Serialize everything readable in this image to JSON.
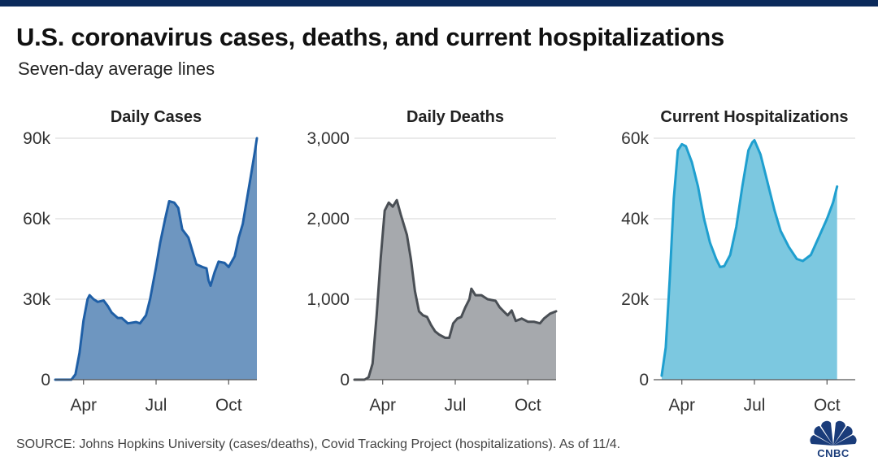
{
  "title": "U.S. coronavirus cases, deaths, and current hospitalizations",
  "subtitle": "Seven-day average lines",
  "source": "SOURCE: Johns Hopkins University (cases/deaths), Covid Tracking Project (hospitalizations). As of 11/4.",
  "logo_text": "CNBC",
  "colors": {
    "cases_line": "#1f5fa6",
    "cases_fill": "#6e96c0",
    "deaths_line": "#4a4f55",
    "deaths_fill": "#a6a9ad",
    "hosp_line": "#1f9fcf",
    "hosp_fill": "#7cc8e0",
    "top_bar": "#0b2a5b"
  },
  "chart_data": [
    {
      "type": "area",
      "title": "Daily Cases",
      "ylim": [
        0,
        90000
      ],
      "yticks": [
        0,
        30000,
        60000,
        90000
      ],
      "ytick_labels": [
        "0",
        "30k",
        "60k",
        "90k"
      ],
      "xlim": [
        0,
        1
      ],
      "xticks": [
        0.14,
        0.5,
        0.86
      ],
      "xtick_labels": [
        "Apr",
        "Jul",
        "Oct"
      ],
      "points": [
        [
          0,
          0
        ],
        [
          0.08,
          0
        ],
        [
          0.1,
          2000
        ],
        [
          0.12,
          10000
        ],
        [
          0.14,
          22000
        ],
        [
          0.16,
          30000
        ],
        [
          0.17,
          31500
        ],
        [
          0.19,
          30000
        ],
        [
          0.21,
          29000
        ],
        [
          0.24,
          29500
        ],
        [
          0.26,
          27500
        ],
        [
          0.28,
          25000
        ],
        [
          0.31,
          23000
        ],
        [
          0.33,
          23000
        ],
        [
          0.36,
          21000
        ],
        [
          0.4,
          21500
        ],
        [
          0.42,
          21000
        ],
        [
          0.45,
          24000
        ],
        [
          0.47,
          30000
        ],
        [
          0.5,
          42000
        ],
        [
          0.52,
          51000
        ],
        [
          0.545,
          60000
        ],
        [
          0.565,
          66500
        ],
        [
          0.59,
          66000
        ],
        [
          0.61,
          64000
        ],
        [
          0.63,
          56000
        ],
        [
          0.66,
          53000
        ],
        [
          0.68,
          48000
        ],
        [
          0.7,
          43000
        ],
        [
          0.73,
          42000
        ],
        [
          0.75,
          41500
        ],
        [
          0.76,
          37000
        ],
        [
          0.77,
          35000
        ],
        [
          0.79,
          40000
        ],
        [
          0.81,
          44000
        ],
        [
          0.84,
          43500
        ],
        [
          0.86,
          42000
        ],
        [
          0.89,
          46000
        ],
        [
          0.91,
          53000
        ],
        [
          0.93,
          58000
        ],
        [
          0.95,
          67000
        ],
        [
          0.97,
          76000
        ],
        [
          0.99,
          85000
        ],
        [
          1,
          90000
        ]
      ]
    },
    {
      "type": "area",
      "title": "Daily Deaths",
      "ylim": [
        0,
        3000
      ],
      "yticks": [
        0,
        1000,
        2000,
        3000
      ],
      "ytick_labels": [
        "0",
        "1,000",
        "2,000",
        "3,000"
      ],
      "xlim": [
        0,
        1
      ],
      "xticks": [
        0.14,
        0.5,
        0.86
      ],
      "xtick_labels": [
        "Apr",
        "Jul",
        "Oct"
      ],
      "points": [
        [
          0,
          0
        ],
        [
          0.05,
          0
        ],
        [
          0.07,
          30
        ],
        [
          0.09,
          200
        ],
        [
          0.11,
          800
        ],
        [
          0.13,
          1500
        ],
        [
          0.15,
          2100
        ],
        [
          0.17,
          2200
        ],
        [
          0.19,
          2150
        ],
        [
          0.21,
          2230
        ],
        [
          0.23,
          2050
        ],
        [
          0.26,
          1800
        ],
        [
          0.28,
          1500
        ],
        [
          0.3,
          1100
        ],
        [
          0.32,
          850
        ],
        [
          0.34,
          800
        ],
        [
          0.36,
          780
        ],
        [
          0.38,
          680
        ],
        [
          0.4,
          600
        ],
        [
          0.42,
          560
        ],
        [
          0.45,
          520
        ],
        [
          0.47,
          520
        ],
        [
          0.49,
          700
        ],
        [
          0.51,
          760
        ],
        [
          0.53,
          780
        ],
        [
          0.55,
          900
        ],
        [
          0.57,
          1000
        ],
        [
          0.58,
          1130
        ],
        [
          0.6,
          1050
        ],
        [
          0.63,
          1050
        ],
        [
          0.66,
          1000
        ],
        [
          0.7,
          980
        ],
        [
          0.72,
          900
        ],
        [
          0.74,
          850
        ],
        [
          0.76,
          800
        ],
        [
          0.78,
          860
        ],
        [
          0.8,
          730
        ],
        [
          0.83,
          760
        ],
        [
          0.86,
          720
        ],
        [
          0.89,
          720
        ],
        [
          0.92,
          700
        ],
        [
          0.94,
          760
        ],
        [
          0.97,
          820
        ],
        [
          1,
          850
        ]
      ]
    },
    {
      "type": "area",
      "title": "Current Hospitalizations",
      "ylim": [
        0,
        60000
      ],
      "yticks": [
        0,
        20000,
        40000,
        60000
      ],
      "ytick_labels": [
        "0",
        "20k",
        "40k",
        "60k"
      ],
      "xlim": [
        0,
        1
      ],
      "xticks": [
        0.14,
        0.5,
        0.86
      ],
      "xtick_labels": [
        "Apr",
        "Jul",
        "Oct"
      ],
      "points": [
        [
          0.04,
          1000
        ],
        [
          0.06,
          8000
        ],
        [
          0.08,
          25000
        ],
        [
          0.1,
          45000
        ],
        [
          0.12,
          57000
        ],
        [
          0.14,
          58500
        ],
        [
          0.16,
          58000
        ],
        [
          0.19,
          54000
        ],
        [
          0.22,
          48000
        ],
        [
          0.25,
          40000
        ],
        [
          0.28,
          34000
        ],
        [
          0.31,
          30000
        ],
        [
          0.33,
          28000
        ],
        [
          0.35,
          28200
        ],
        [
          0.38,
          31000
        ],
        [
          0.41,
          38000
        ],
        [
          0.44,
          48000
        ],
        [
          0.47,
          57000
        ],
        [
          0.49,
          59000
        ],
        [
          0.5,
          59500
        ],
        [
          0.53,
          56000
        ],
        [
          0.56,
          50000
        ],
        [
          0.6,
          42000
        ],
        [
          0.63,
          37000
        ],
        [
          0.67,
          33000
        ],
        [
          0.71,
          30000
        ],
        [
          0.74,
          29500
        ],
        [
          0.78,
          31000
        ],
        [
          0.82,
          35500
        ],
        [
          0.86,
          40000
        ],
        [
          0.89,
          44000
        ],
        [
          0.91,
          48000
        ]
      ]
    }
  ]
}
